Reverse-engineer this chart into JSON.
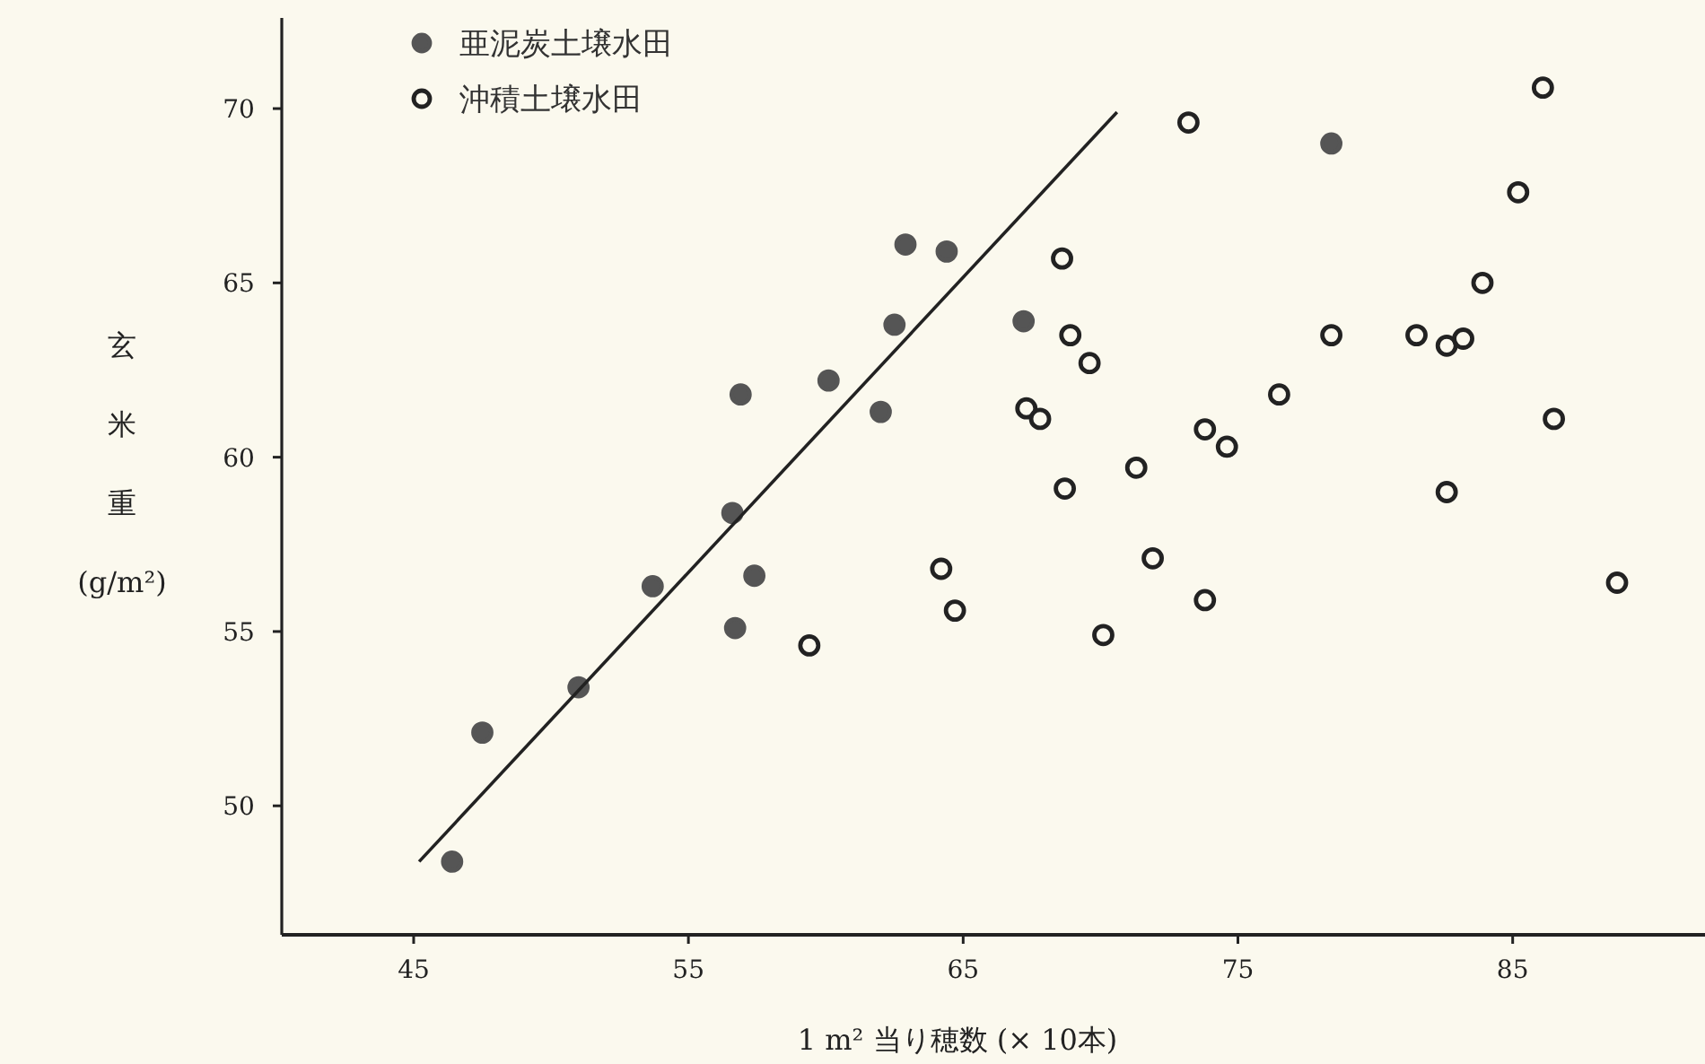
{
  "chart_data": {
    "type": "scatter",
    "xlabel": "1 m² 当り穂数 (× 10本)",
    "ylabel": "玄米重 (g/m²)",
    "xlim": [
      40.2,
      92
    ],
    "ylim": [
      46.3,
      72.6
    ],
    "xticks": [
      45,
      55,
      65,
      75,
      85
    ],
    "yticks": [
      50,
      55,
      60,
      65,
      70
    ],
    "grid": false,
    "legend": "top left",
    "series": [
      {
        "name": "亜泥炭土壌水田",
        "color": "#555555",
        "marker": "circle",
        "x": [
          56.9,
          60.1,
          56.6,
          57.4,
          53.7,
          56.7,
          51.0,
          47.5,
          46.4,
          62.9,
          64.4,
          62.5,
          67.2,
          62.0,
          78.4
        ],
        "values": [
          61.8,
          62.2,
          58.4,
          56.6,
          56.3,
          55.1,
          53.4,
          52.1,
          48.4,
          66.1,
          65.9,
          63.8,
          63.9,
          61.3,
          69.0
        ]
      },
      {
        "name": "沖積土壌水田",
        "color": "#222222",
        "marker": "circle",
        "x": [
          73.2,
          86.1,
          85.2,
          68.6,
          83.9,
          68.9,
          78.4,
          81.5,
          82.6,
          83.2,
          69.6,
          76.5,
          67.3,
          67.8,
          73.8,
          74.6,
          86.5,
          71.3,
          68.7,
          82.6,
          64.2,
          64.7,
          71.9,
          73.8,
          70.1,
          88.8,
          59.4
        ],
        "values": [
          69.6,
          70.6,
          67.6,
          65.7,
          65.0,
          63.5,
          63.5,
          63.5,
          63.2,
          63.4,
          62.7,
          61.8,
          61.4,
          61.1,
          60.8,
          60.3,
          61.1,
          59.7,
          59.1,
          59.0,
          56.8,
          55.6,
          57.1,
          55.9,
          54.9,
          56.4,
          54.6
        ]
      },
      {
        "type": "line",
        "color": "#222222",
        "x": [
          45.2,
          70.6
        ],
        "values": [
          48.4,
          69.9
        ]
      }
    ]
  }
}
